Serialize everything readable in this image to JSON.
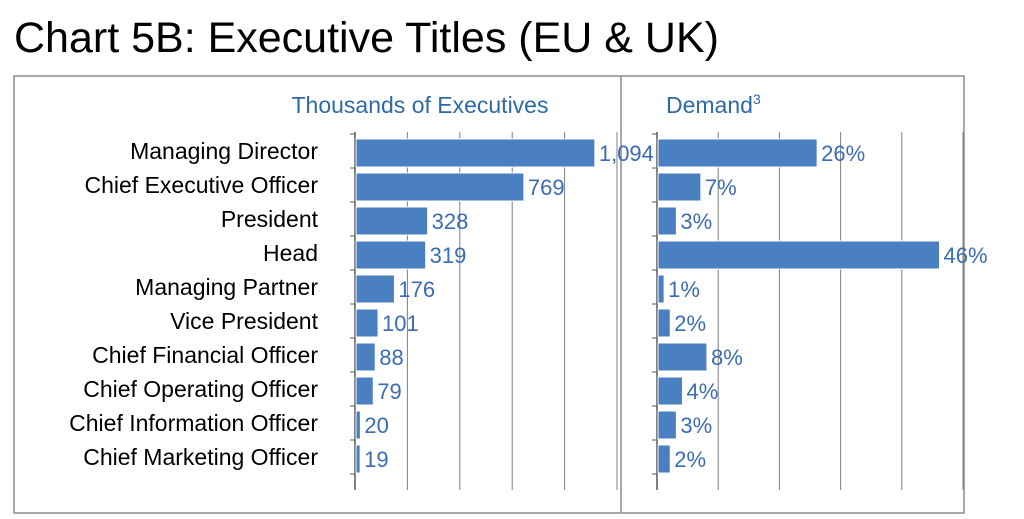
{
  "title": "Chart 5B: Executive Titles (EU & UK)",
  "colors": {
    "bar": "#4a7fc1",
    "bar_stroke": "#3a6db0",
    "label": "#3c6cb4",
    "panel_title": "#2f6aa8",
    "grid": "#7f7f7f",
    "frame": "#8c8c8c"
  },
  "chart_data": [
    {
      "type": "bar",
      "orientation": "horizontal",
      "title": "Thousands of Executives",
      "categories": [
        "Managing Director",
        "Chief Executive Officer",
        "President",
        "Head",
        "Managing Partner",
        "Vice President",
        "Chief Financial Officer",
        "Chief Operating Officer",
        "Chief Information Officer",
        "Chief Marketing Officer"
      ],
      "values": [
        1094,
        769,
        328,
        319,
        176,
        101,
        88,
        79,
        20,
        19
      ],
      "value_labels": [
        "1,094",
        "769",
        "328",
        "319",
        "176",
        "101",
        "88",
        "79",
        "20",
        "19"
      ],
      "xlim": [
        0,
        1200
      ],
      "grid": true
    },
    {
      "type": "bar",
      "orientation": "horizontal",
      "title": "Demand",
      "title_superscript": "3",
      "categories": [
        "Managing Director",
        "Chief Executive Officer",
        "President",
        "Head",
        "Managing Partner",
        "Vice President",
        "Chief Financial Officer",
        "Chief Operating Officer",
        "Chief Information Officer",
        "Chief Marketing Officer"
      ],
      "values": [
        26,
        7,
        3,
        46,
        1,
        2,
        8,
        4,
        3,
        2
      ],
      "value_labels": [
        "26%",
        "7%",
        "3%",
        "46%",
        "1%",
        "2%",
        "8%",
        "4%",
        "3%",
        "2%"
      ],
      "xlim": [
        0,
        50
      ],
      "grid": true
    }
  ]
}
